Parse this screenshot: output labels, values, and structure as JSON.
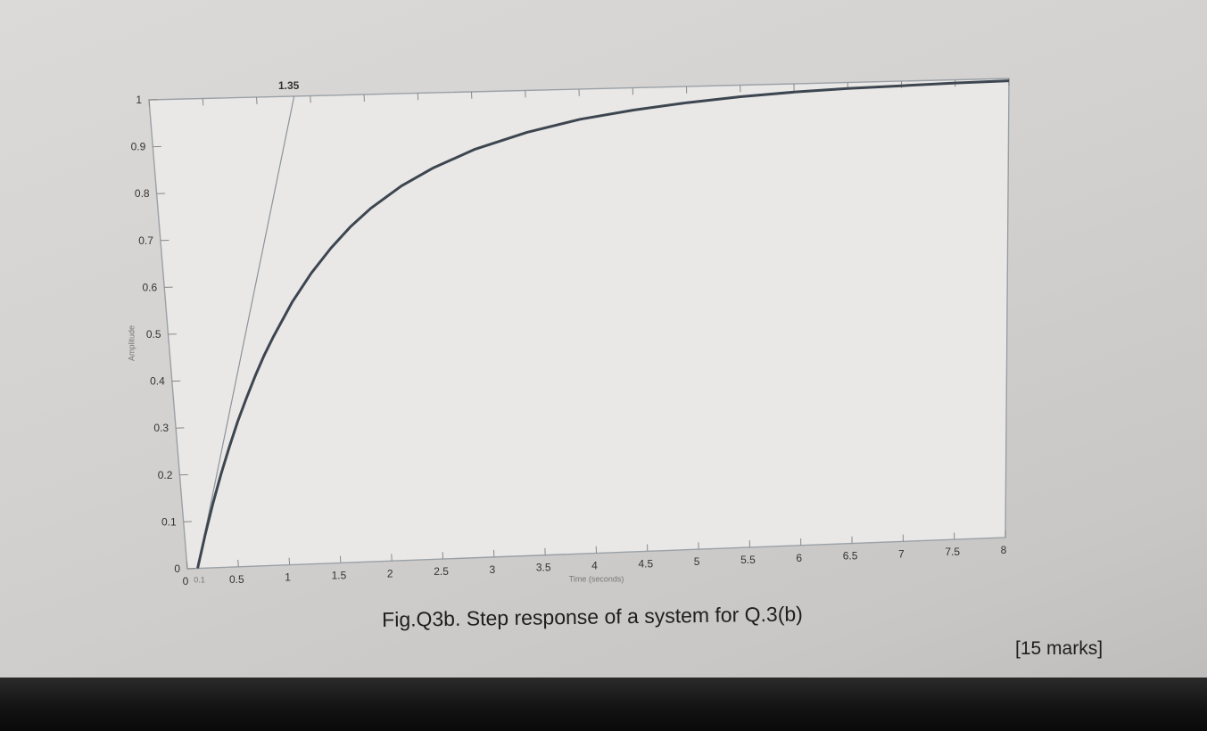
{
  "caption": "Fig.Q3b. Step response of a system for Q.3(b)",
  "marks": "[15 marks]",
  "chart_data": {
    "type": "line",
    "title": "",
    "xlabel": "Time (seconds)",
    "ylabel": "Amplitude",
    "xlim": [
      0,
      8
    ],
    "ylim": [
      0,
      1
    ],
    "x_ticks": [
      "0",
      "0.5",
      "1",
      "1.5",
      "2",
      "2.5",
      "3",
      "3.5",
      "4",
      "4.5",
      "5",
      "5.5",
      "6",
      "6.5",
      "7",
      "7.5",
      "8"
    ],
    "y_ticks": [
      "0",
      "0.1",
      "0.2",
      "0.3",
      "0.4",
      "0.5",
      "0.6",
      "0.7",
      "0.8",
      "0.9",
      "1"
    ],
    "grid": false,
    "series": [
      {
        "x": [
          0.1,
          0.2,
          0.3,
          0.4,
          0.5,
          0.6,
          0.7,
          0.8,
          0.9,
          1.0,
          1.2,
          1.4,
          1.6,
          1.8,
          2.0,
          2.3,
          2.6,
          3.0,
          3.5,
          4.0,
          4.5,
          5.0,
          5.5,
          6.0,
          6.5,
          7.0,
          7.5,
          8.0
        ],
        "y": [
          0.0,
          0.071,
          0.137,
          0.199,
          0.256,
          0.31,
          0.359,
          0.406,
          0.449,
          0.488,
          0.56,
          0.621,
          0.673,
          0.718,
          0.756,
          0.802,
          0.838,
          0.876,
          0.91,
          0.935,
          0.952,
          0.965,
          0.975,
          0.982,
          0.987,
          0.99,
          0.993,
          0.995
        ]
      }
    ],
    "tangent_line": {
      "x": [
        0.1,
        1.35
      ],
      "y": [
        0,
        1
      ]
    },
    "annotations": [
      {
        "text": "1.35",
        "x": 1.35,
        "y": 1
      },
      {
        "text": "0.1",
        "x": 0.1,
        "y": 0
      }
    ]
  }
}
